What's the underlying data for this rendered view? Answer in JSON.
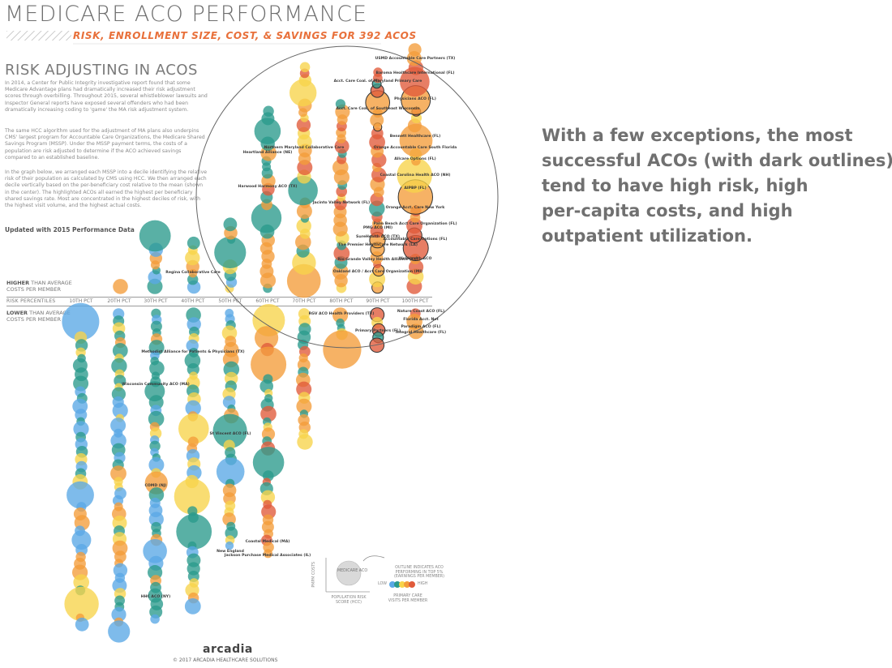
{
  "header": {
    "title": "MEDICARE ACO PERFORMANCE",
    "subtitle": "RISK, ENROLLMENT SIZE, COST, & SAVINGS FOR 392 ACOS"
  },
  "article": {
    "heading": "RISK ADJUSTING IN ACOS",
    "paragraphs": [
      "In 2014, a Center for Public Integrity investigative report found that some Medicare Advantage plans had dramatically increased their risk adjustment scores through overbilling. Throughout 2015, several whistleblower lawsuits and Inspector General reports have exposed several offenders who had been dramatically increasing coding to 'game' the MA risk adjustment system.",
      "The same HCC algorithm used for the adjustment of MA plans also underpins CMS' largest program for Accountable Care Organizations, the Medicare Shared Savings Program (MSSP). Under the MSSP payment terms, the costs of a population are risk adjusted to determine if the ACO achieved savings compared to an established baseline.",
      "In the graph below, we arranged each MSSP into a decile identifying the relative risk of their population as calculated by CMS using HCC. We then arranged each decile vertically based on the per-beneficiary cost relative to the mean (shown in the center). The highlighted ACOs all earned the highest per beneficiary shared savings rate. Most are concentrated in the highest deciles of risk, with the highest visit volume, and the highest actual costs."
    ],
    "updated": "Updated with 2015 Performance Data"
  },
  "zones": {
    "higher_bold": "HIGHER",
    "higher_rest": " THAN AVERAGE",
    "higher_line2": "COSTS PER MEMBER",
    "lower_bold": "LOWER",
    "lower_rest": " THAN AVERAGE",
    "lower_line2": "COSTS PER MEMBER",
    "risk_percentiles": "RISK PERCENTILES"
  },
  "annotation": {
    "lines": [
      "With a few exceptions, the most",
      "successful ACOs (with dark outlines)",
      "tend to have high risk, high",
      "per-capita costs, and high",
      "outpatient utilization."
    ]
  },
  "legend": {
    "bubble_label": "MEDICARE ACO",
    "y_axis": "PMPM COSTS",
    "x_axis": "POPULATION RISK SCORE (HCC)",
    "outline_note": "OUTLINE INDICATES ACO PERFORMING IN TOP 5% (EARNINGS PER MEMBER)",
    "low": "LOW",
    "high": "HIGH",
    "color_note": "PRIMARY CARE VISITS PER MEMBER"
  },
  "footer": {
    "logo": "arcadia",
    "copyright": "© 2017 ARCADIA HEALTHCARE SOLUTIONS"
  },
  "colors": {
    "blue": "#5aa8e6",
    "teal": "#2a9a8c",
    "yellow": "#f7d44a",
    "orange": "#f39c3a",
    "red": "#e05a3a",
    "title": "#6e6e6e",
    "subtitle": "#e8703a"
  },
  "chart_data": {
    "type": "scatter",
    "title": "MEDICARE ACO PERFORMANCE",
    "xlabel": "RISK PERCENTILES",
    "categories": [
      "10TH PCT",
      "20TH PCT",
      "30TH PCT",
      "40TH PCT",
      "50TH PCT",
      "60TH PCT",
      "70TH PCT",
      "80TH PCT",
      "90TH PCT",
      "100TH PCT"
    ],
    "highlighted_acos": [
      {
        "name": "USMD Accountable Care Partners (TX)",
        "decile": "100TH PCT"
      },
      {
        "name": "Baroma Healthcare International (FL)",
        "decile": "100TH PCT"
      },
      {
        "name": "Physicians ACO (FL)",
        "decile": "100TH PCT"
      },
      {
        "name": "Bennett Healthcare (FL)",
        "decile": "100TH PCT"
      },
      {
        "name": "Orange Accountable Care South Florida",
        "decile": "100TH PCT"
      },
      {
        "name": "Allcare Options (FL)",
        "decile": "100TH PCT"
      },
      {
        "name": "Coastal Carolina Health ACO (NH)",
        "decile": "100TH PCT"
      },
      {
        "name": "AIPBP (FL)",
        "decile": "100TH PCT"
      },
      {
        "name": "Orange Acct. Care New York",
        "decile": "100TH PCT"
      },
      {
        "name": "Palm Beach Acct Care Organization (FL)",
        "decile": "100TH PCT"
      },
      {
        "name": "Accountable Care Options (FL)",
        "decile": "100TH PCT"
      },
      {
        "name": "WellHealth ACO",
        "decile": "100TH PCT"
      },
      {
        "name": "Nature Coast ACO (FL)",
        "decile": "100TH PCT"
      },
      {
        "name": "Florida Acct. Net",
        "decile": "100TH PCT"
      },
      {
        "name": "Paradigm ACO (FL)",
        "decile": "100TH PCT"
      },
      {
        "name": "Integral Healthcare (FL)",
        "decile": "100TH PCT"
      },
      {
        "name": "Acct. Care Coal. of Maryland Primary Care",
        "decile": "90TH PCT"
      },
      {
        "name": "Acct. Care Coal. of Southeast Wisconsin",
        "decile": "90TH PCT"
      },
      {
        "name": "PMG ACO (MI)",
        "decile": "90TH PCT"
      },
      {
        "name": "SureHealth ACO (TX)",
        "decile": "90TH PCT"
      },
      {
        "name": "The Premier HealthCare Network (LA)",
        "decile": "90TH PCT"
      },
      {
        "name": "Rio Grande Valley Health Alliance (TX)",
        "decile": "90TH PCT"
      },
      {
        "name": "Oakland ACO / Acct Care Organization (MI)",
        "decile": "90TH PCT"
      },
      {
        "name": "Primary Partners (FL)",
        "decile": "90TH PCT"
      },
      {
        "name": "Jacinto Valley Network (FL)",
        "decile": "80TH PCT"
      },
      {
        "name": "RGV ACO Health Providers (TX)",
        "decile": "80TH PCT"
      },
      {
        "name": "Northern Maryland Collaborative Care",
        "decile": "70TH PCT"
      },
      {
        "name": "Heartland Alliance (NE)",
        "decile": "60TH PCT"
      },
      {
        "name": "Harwood Harmony ACO (TX)",
        "decile": "60TH PCT"
      },
      {
        "name": "Coastal Medical (MA)",
        "decile": "60TH PCT"
      },
      {
        "name": "Jackson Purchase Medical Associates (IL)",
        "decile": "60TH PCT"
      },
      {
        "name": "St Vincent ACO (FL)",
        "decile": "50TH PCT"
      },
      {
        "name": "New England",
        "decile": "50TH PCT"
      },
      {
        "name": "Regina Collaborative Care",
        "decile": "40TH PCT"
      },
      {
        "name": "Methodist Alliance for Patients & Physicians (TX)",
        "decile": "40TH PCT"
      },
      {
        "name": "Wisconsin Community ACO (MA)",
        "decile": "30TH PCT"
      },
      {
        "name": "COMD (NJ)",
        "decile": "30TH PCT"
      },
      {
        "name": "HHC ACO (NY)",
        "decile": "30TH PCT"
      }
    ]
  }
}
